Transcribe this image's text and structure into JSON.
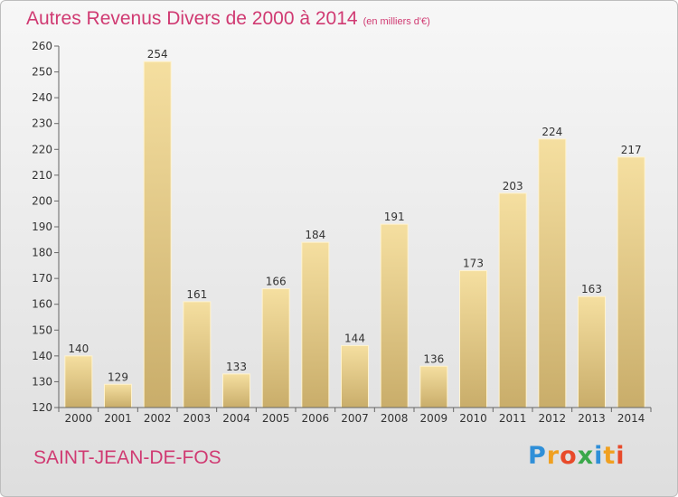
{
  "title": "Autres Revenus Divers de 2000 à 2014",
  "subtitle": "(en milliers d'€)",
  "commune": "SAINT-JEAN-DE-FOS",
  "brand": {
    "letters": [
      {
        "ch": "P",
        "color": "#2f8fd8"
      },
      {
        "ch": "r",
        "color": "#f0a020"
      },
      {
        "ch": "o",
        "color": "#e84a2a"
      },
      {
        "ch": "x",
        "color": "#3aa84a"
      },
      {
        "ch": "i",
        "color": "#2f8fd8"
      },
      {
        "ch": "t",
        "color": "#f0a020"
      },
      {
        "ch": "i",
        "color": "#e84a2a"
      }
    ]
  },
  "colors": {
    "accent": "#d03a72",
    "bar_light": "#f5dfa0",
    "bar_dark": "#c9ad6a"
  },
  "chart_data": {
    "type": "bar",
    "title": "Autres Revenus Divers de 2000 à 2014",
    "xlabel": "",
    "ylabel": "",
    "categories": [
      "2000",
      "2001",
      "2002",
      "2003",
      "2004",
      "2005",
      "2006",
      "2007",
      "2008",
      "2009",
      "2010",
      "2011",
      "2012",
      "2013",
      "2014"
    ],
    "values": [
      140,
      129,
      254,
      161,
      133,
      166,
      184,
      144,
      191,
      136,
      173,
      203,
      224,
      163,
      217
    ],
    "ylim": [
      120,
      260
    ],
    "yticks": [
      120,
      130,
      140,
      150,
      160,
      170,
      180,
      190,
      200,
      210,
      220,
      230,
      240,
      250,
      260
    ],
    "grid": false,
    "legend": "none"
  }
}
